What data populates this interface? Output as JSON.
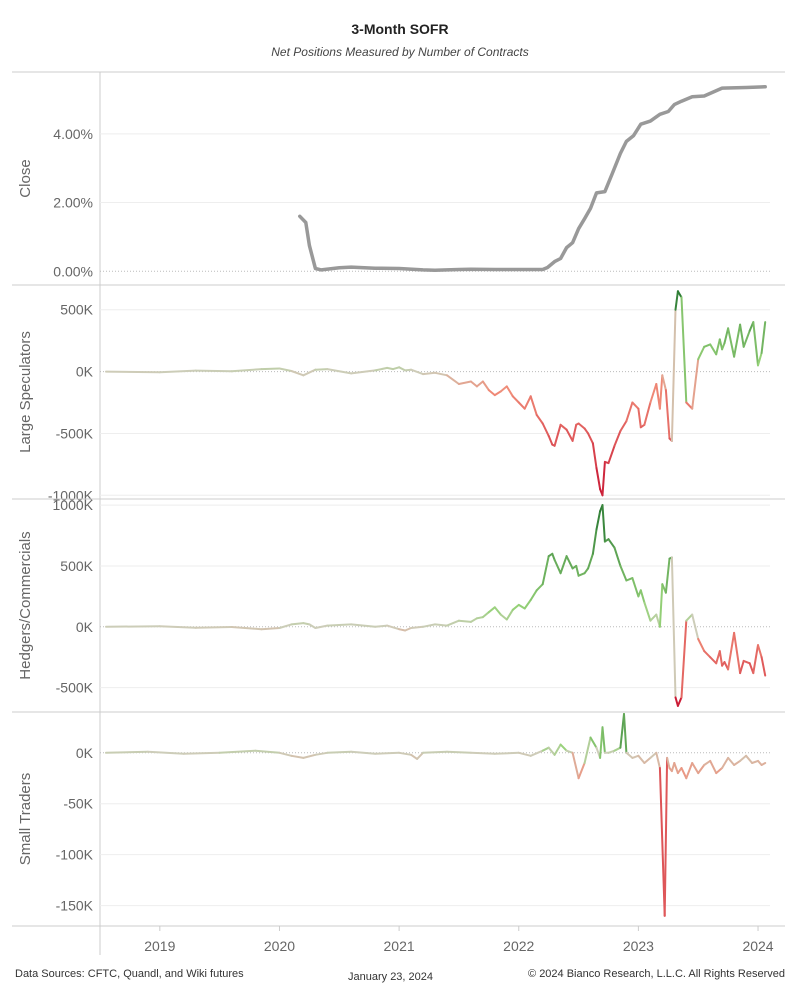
{
  "chart_data": {
    "type": "line",
    "title": "3-Month SOFR",
    "subtitle": "Net Positions Measured by Number of Contracts",
    "x_range": [
      2018.5,
      2024.1
    ],
    "x_ticks": [
      2019,
      2020,
      2021,
      2022,
      2023,
      2024
    ],
    "x_tick_labels": [
      "2019",
      "2020",
      "2021",
      "2022",
      "2023",
      "2024"
    ],
    "panels": [
      {
        "ylabel": "Close",
        "ylim": [
          -0.004,
          0.058
        ],
        "y_ticks": [
          0,
          0.02,
          0.04
        ],
        "y_tick_labels": [
          "0.00%",
          "2.00%",
          "4.00%"
        ],
        "color": "#999999",
        "series": {
          "x": [
            2020.17,
            2020.22,
            2020.25,
            2020.3,
            2020.35,
            2020.5,
            2020.6,
            2020.8,
            2021.0,
            2021.2,
            2021.3,
            2021.5,
            2021.6,
            2021.8,
            2022.0,
            2022.2,
            2022.24,
            2022.3,
            2022.35,
            2022.4,
            2022.45,
            2022.5,
            2022.55,
            2022.6,
            2022.65,
            2022.72,
            2022.78,
            2022.85,
            2022.9,
            2022.96,
            2023.02,
            2023.1,
            2023.18,
            2023.25,
            2023.3,
            2023.36,
            2023.45,
            2023.55,
            2023.7,
            2023.9,
            2024.06
          ],
          "y": [
            0.016,
            0.0142,
            0.0075,
            0.0008,
            0.0004,
            0.001,
            0.0012,
            0.0009,
            0.0008,
            0.0004,
            0.0003,
            0.0005,
            0.0006,
            0.0005,
            0.0005,
            0.0005,
            0.0011,
            0.0028,
            0.0037,
            0.0069,
            0.0083,
            0.0124,
            0.0153,
            0.0183,
            0.0228,
            0.0232,
            0.0283,
            0.0343,
            0.0378,
            0.0395,
            0.0428,
            0.0437,
            0.0457,
            0.0465,
            0.0485,
            0.0495,
            0.0508,
            0.051,
            0.0533,
            0.0535,
            0.0537
          ]
        }
      },
      {
        "ylabel": "Large Speculators",
        "ylim": [
          -1030000,
          700000
        ],
        "y_ticks": [
          500000,
          0,
          -500000,
          -1000000
        ],
        "y_tick_labels": [
          "500K",
          "0K",
          "-500K",
          "-1000K"
        ],
        "color_scale": {
          "min": -1000000,
          "max": 650000
        },
        "series": {
          "x": [
            2018.55,
            2019.0,
            2019.3,
            2019.6,
            2019.85,
            2020.0,
            2020.1,
            2020.2,
            2020.3,
            2020.4,
            2020.6,
            2020.8,
            2020.9,
            2020.95,
            2021.0,
            2021.05,
            2021.1,
            2021.2,
            2021.3,
            2021.4,
            2021.5,
            2021.6,
            2021.65,
            2021.7,
            2021.75,
            2021.8,
            2021.85,
            2021.9,
            2021.95,
            2022.0,
            2022.05,
            2022.1,
            2022.15,
            2022.2,
            2022.25,
            2022.28,
            2022.3,
            2022.35,
            2022.4,
            2022.45,
            2022.48,
            2022.5,
            2022.55,
            2022.58,
            2022.62,
            2022.65,
            2022.68,
            2022.7,
            2022.72,
            2022.75,
            2022.8,
            2022.85,
            2022.9,
            2022.95,
            2023.0,
            2023.02,
            2023.05,
            2023.1,
            2023.15,
            2023.18,
            2023.2,
            2023.23,
            2023.26,
            2023.28,
            2023.31,
            2023.33,
            2023.36,
            2023.4,
            2023.45,
            2023.5,
            2023.55,
            2023.6,
            2023.65,
            2023.68,
            2023.7,
            2023.72,
            2023.75,
            2023.8,
            2023.85,
            2023.88,
            2023.93,
            2023.96,
            2024.0,
            2024.03,
            2024.06
          ],
          "y": [
            0,
            -5000,
            8000,
            2000,
            20000,
            25000,
            5000,
            -30000,
            15000,
            20000,
            -15000,
            10000,
            30000,
            20000,
            35000,
            10000,
            15000,
            -20000,
            -10000,
            -30000,
            -100000,
            -80000,
            -120000,
            -80000,
            -150000,
            -190000,
            -160000,
            -120000,
            -200000,
            -250000,
            -300000,
            -200000,
            -350000,
            -420000,
            -520000,
            -590000,
            -600000,
            -430000,
            -470000,
            -560000,
            -430000,
            -420000,
            -460000,
            -500000,
            -580000,
            -780000,
            -950000,
            -1000000,
            -730000,
            -740000,
            -600000,
            -480000,
            -400000,
            -250000,
            -300000,
            -450000,
            -430000,
            -250000,
            -100000,
            -300000,
            -30000,
            -150000,
            -540000,
            -560000,
            500000,
            650000,
            600000,
            -250000,
            -300000,
            100000,
            200000,
            220000,
            140000,
            260000,
            180000,
            230000,
            350000,
            120000,
            380000,
            200000,
            330000,
            400000,
            50000,
            150000,
            400000
          ]
        }
      },
      {
        "ylabel": "Hedgers/Commercials",
        "ylim": [
          -700000,
          1050000
        ],
        "y_ticks": [
          1000000,
          500000,
          0,
          -500000
        ],
        "y_tick_labels": [
          "1000K",
          "500K",
          "0K",
          "-500K"
        ],
        "color_scale": {
          "min": -650000,
          "max": 1000000
        },
        "series": {
          "x": [
            2018.55,
            2019.0,
            2019.3,
            2019.6,
            2019.85,
            2020.0,
            2020.1,
            2020.2,
            2020.25,
            2020.3,
            2020.4,
            2020.6,
            2020.8,
            2020.9,
            2021.0,
            2021.05,
            2021.1,
            2021.2,
            2021.3,
            2021.4,
            2021.5,
            2021.6,
            2021.65,
            2021.7,
            2021.75,
            2021.8,
            2021.85,
            2021.9,
            2021.95,
            2022.0,
            2022.05,
            2022.1,
            2022.15,
            2022.2,
            2022.25,
            2022.28,
            2022.3,
            2022.35,
            2022.4,
            2022.45,
            2022.48,
            2022.5,
            2022.55,
            2022.58,
            2022.62,
            2022.65,
            2022.68,
            2022.7,
            2022.72,
            2022.75,
            2022.8,
            2022.85,
            2022.9,
            2022.95,
            2023.0,
            2023.02,
            2023.05,
            2023.1,
            2023.15,
            2023.18,
            2023.2,
            2023.23,
            2023.26,
            2023.28,
            2023.31,
            2023.33,
            2023.36,
            2023.4,
            2023.45,
            2023.5,
            2023.55,
            2023.6,
            2023.65,
            2023.68,
            2023.7,
            2023.72,
            2023.75,
            2023.8,
            2023.85,
            2023.88,
            2023.93,
            2023.96,
            2024.0,
            2024.03,
            2024.06
          ],
          "y": [
            0,
            5000,
            -8000,
            -2000,
            -20000,
            -10000,
            20000,
            30000,
            20000,
            -10000,
            10000,
            20000,
            0,
            10000,
            -20000,
            -30000,
            -10000,
            0,
            20000,
            10000,
            50000,
            40000,
            70000,
            80000,
            120000,
            160000,
            100000,
            60000,
            140000,
            180000,
            150000,
            220000,
            300000,
            350000,
            580000,
            600000,
            550000,
            440000,
            580000,
            480000,
            500000,
            420000,
            440000,
            480000,
            600000,
            800000,
            950000,
            1000000,
            700000,
            720000,
            650000,
            500000,
            380000,
            400000,
            250000,
            300000,
            200000,
            50000,
            100000,
            0,
            350000,
            280000,
            560000,
            570000,
            -580000,
            -650000,
            -580000,
            50000,
            100000,
            -100000,
            -200000,
            -250000,
            -300000,
            -200000,
            -320000,
            -290000,
            -350000,
            -50000,
            -380000,
            -280000,
            -300000,
            -380000,
            -150000,
            -250000,
            -400000
          ]
        }
      },
      {
        "ylabel": "Small Traders",
        "ylim": [
          -170000,
          40000
        ],
        "y_ticks": [
          0,
          -50000,
          -100000,
          -150000
        ],
        "y_tick_labels": [
          "0K",
          "-50K",
          "-100K",
          "-150K"
        ],
        "color_scale": {
          "min": -160000,
          "max": 35000
        },
        "series": {
          "x": [
            2018.55,
            2018.9,
            2019.2,
            2019.5,
            2019.8,
            2020.0,
            2020.1,
            2020.2,
            2020.3,
            2020.4,
            2020.6,
            2020.8,
            2021.0,
            2021.1,
            2021.15,
            2021.2,
            2021.4,
            2021.6,
            2021.8,
            2022.0,
            2022.1,
            2022.2,
            2022.25,
            2022.3,
            2022.35,
            2022.4,
            2022.45,
            2022.5,
            2022.55,
            2022.6,
            2022.65,
            2022.68,
            2022.7,
            2022.72,
            2022.75,
            2022.8,
            2022.85,
            2022.88,
            2022.9,
            2022.95,
            2023.0,
            2023.05,
            2023.1,
            2023.15,
            2023.18,
            2023.22,
            2023.24,
            2023.26,
            2023.28,
            2023.3,
            2023.33,
            2023.36,
            2023.4,
            2023.45,
            2023.5,
            2023.55,
            2023.6,
            2023.65,
            2023.7,
            2023.75,
            2023.8,
            2023.85,
            2023.9,
            2023.95,
            2024.0,
            2024.03,
            2024.06
          ],
          "y": [
            0,
            1000,
            -1000,
            0,
            2000,
            0,
            -3000,
            -5000,
            -2000,
            0,
            1000,
            -1000,
            0,
            -2000,
            -6000,
            0,
            1000,
            0,
            -1000,
            0,
            -3000,
            2000,
            5000,
            -2000,
            8000,
            2000,
            0,
            -25000,
            -10000,
            15000,
            5000,
            -5000,
            25000,
            0,
            0,
            2000,
            5000,
            38000,
            0,
            -5000,
            -3000,
            -10000,
            -5000,
            0,
            -15000,
            -160000,
            -5000,
            -15000,
            -18000,
            -10000,
            -20000,
            -15000,
            -25000,
            -10000,
            -20000,
            -12000,
            -8000,
            -20000,
            -15000,
            -5000,
            -12000,
            -8000,
            -3000,
            -10000,
            -8000,
            -12000,
            -10000
          ]
        }
      }
    ]
  },
  "footer": {
    "sources": "Data Sources: CFTC, Quandl, and Wiki futures",
    "date": "January 23, 2024",
    "copyright": "© 2024 Bianco Research, L.L.C. All Rights Reserved"
  }
}
